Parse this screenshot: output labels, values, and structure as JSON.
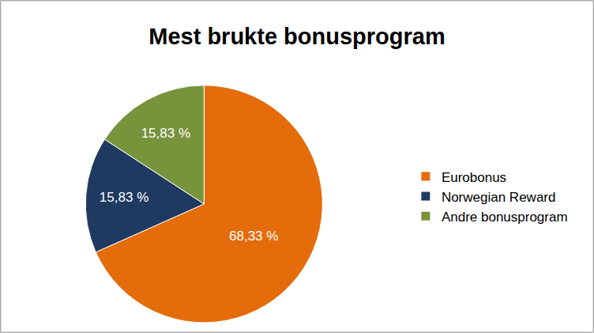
{
  "chart_data": {
    "type": "pie",
    "title": "Mest brukte bonusprogram",
    "categories": [
      "Eurobonus",
      "Norwegian Reward",
      "Andre bonusprogram"
    ],
    "values": [
      68.33,
      15.83,
      15.83
    ],
    "value_labels": [
      "68,33 %",
      "15,83 %",
      "15,83 %"
    ],
    "colors": [
      "#E46C0A",
      "#1F3A60",
      "#77933C"
    ],
    "data_labels": true,
    "legend": "right"
  }
}
